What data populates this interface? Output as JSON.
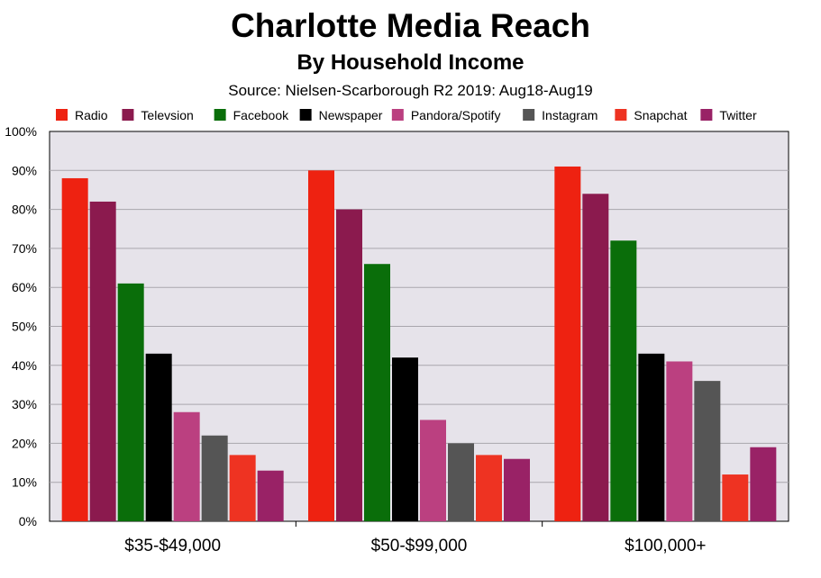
{
  "chart_data": {
    "type": "bar",
    "title": "Charlotte Media Reach",
    "subtitle": "By Household Income",
    "source": "Source: Nielsen-Scarborough R2 2019: Aug18-Aug19",
    "categories": [
      "$35-$49,000",
      "$50-$99,000",
      "$100,000+"
    ],
    "ylim": [
      0,
      100
    ],
    "yticks": [
      "0%",
      "10%",
      "20%",
      "30%",
      "40%",
      "50%",
      "60%",
      "70%",
      "80%",
      "90%",
      "100%"
    ],
    "grid": true,
    "legend_position": "top",
    "series": [
      {
        "name": "Radio",
        "color": "#ee2211",
        "values": [
          88,
          90,
          91
        ]
      },
      {
        "name": "Televsion",
        "color": "#8b1a4e",
        "values": [
          82,
          80,
          84
        ]
      },
      {
        "name": "Facebook",
        "color": "#0a6e0a",
        "values": [
          61,
          66,
          72
        ]
      },
      {
        "name": "Newspaper",
        "color": "#000000",
        "values": [
          43,
          42,
          43
        ]
      },
      {
        "name": "Pandora/Spotify",
        "color": "#bb4080",
        "values": [
          28,
          26,
          41
        ]
      },
      {
        "name": "Instagram",
        "color": "#555555",
        "values": [
          22,
          20,
          36
        ]
      },
      {
        "name": "Snapchat",
        "color": "#ee3322",
        "values": [
          17,
          17,
          12
        ]
      },
      {
        "name": "Twitter",
        "color": "#992266",
        "values": [
          13,
          16,
          19
        ]
      }
    ]
  }
}
